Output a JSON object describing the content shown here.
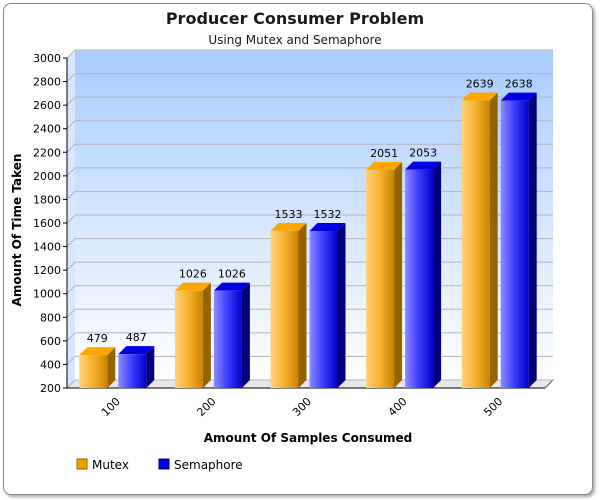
{
  "chart_data": {
    "type": "bar",
    "title": "Producer Consumer Problem",
    "subtitle": "Using Mutex and Semaphore",
    "xlabel": "Amount Of Samples Consumed",
    "ylabel": "Amount Of Time Taken",
    "categories": [
      "100",
      "200",
      "300",
      "400",
      "500"
    ],
    "series": [
      {
        "name": "Mutex",
        "values": [
          479,
          1026,
          1533,
          2051,
          2639
        ],
        "color": "#f0a000"
      },
      {
        "name": "Semaphore",
        "values": [
          487,
          1026,
          1532,
          2053,
          2638
        ],
        "color": "#0000e0"
      }
    ],
    "ylim": [
      200,
      3000
    ],
    "yticks": [
      200,
      400,
      600,
      800,
      1000,
      1200,
      1400,
      1600,
      1800,
      2000,
      2200,
      2400,
      2600,
      2800,
      3000
    ],
    "grid": true,
    "legend_position": "bottom-left",
    "plot_background": [
      "#a8ccff",
      "#ffffff"
    ]
  }
}
